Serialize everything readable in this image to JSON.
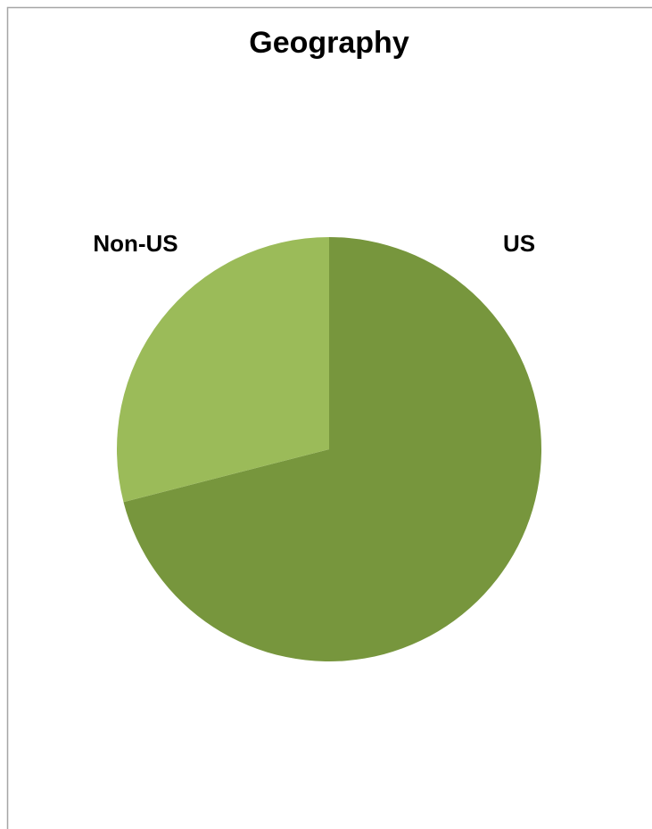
{
  "chart_data": {
    "type": "pie",
    "title": "Geography",
    "categories": [
      "US",
      "Non-US"
    ],
    "values": [
      71,
      29
    ],
    "colors": [
      "#77963d",
      "#9bbb59"
    ]
  }
}
